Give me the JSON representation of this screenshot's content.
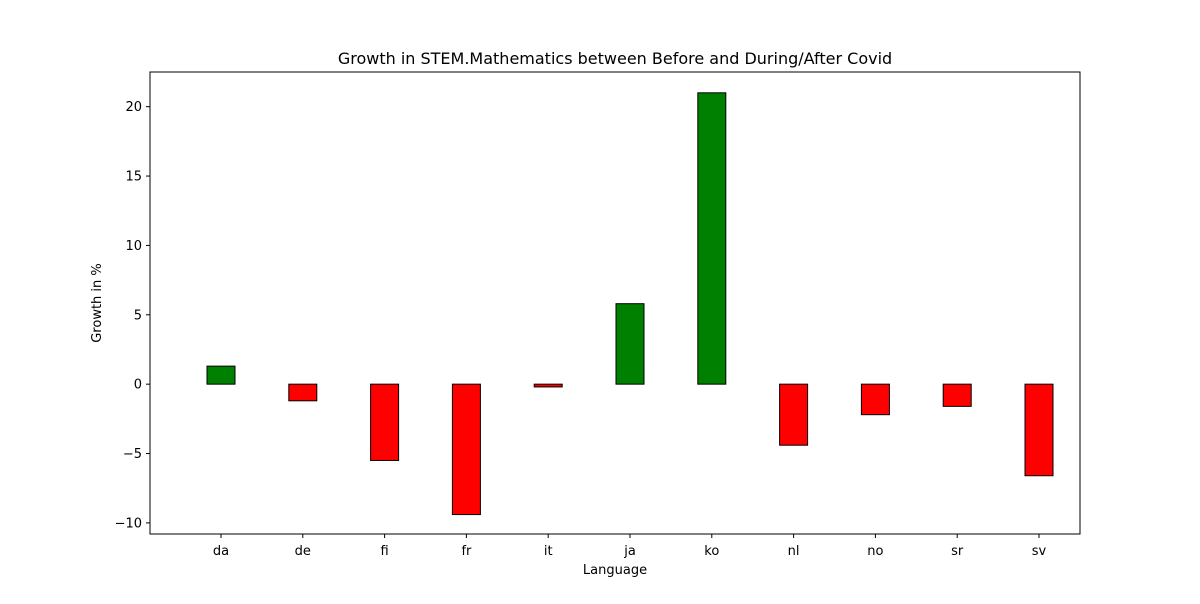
{
  "chart_data": {
    "type": "bar",
    "title": "Growth in STEM.Mathematics between Before and During/After Covid",
    "xlabel": "Language",
    "ylabel": "Growth in %",
    "categories": [
      "da",
      "de",
      "fi",
      "fr",
      "it",
      "ja",
      "ko",
      "nl",
      "no",
      "sr",
      "sv"
    ],
    "values": [
      1.3,
      -1.2,
      -5.5,
      -9.4,
      -0.2,
      5.8,
      21.0,
      -4.4,
      -2.2,
      -1.6,
      -6.6
    ],
    "ylim": [
      -10.8,
      22.5
    ],
    "yticks": [
      -10,
      -5,
      0,
      5,
      10,
      15,
      20
    ],
    "ytick_labels": [
      "−10",
      "−5",
      "0",
      "5",
      "10",
      "15",
      "20"
    ],
    "grid": false,
    "colors": {
      "positive": "#008000",
      "negative": "#ff0000",
      "edge": "#000000"
    }
  }
}
